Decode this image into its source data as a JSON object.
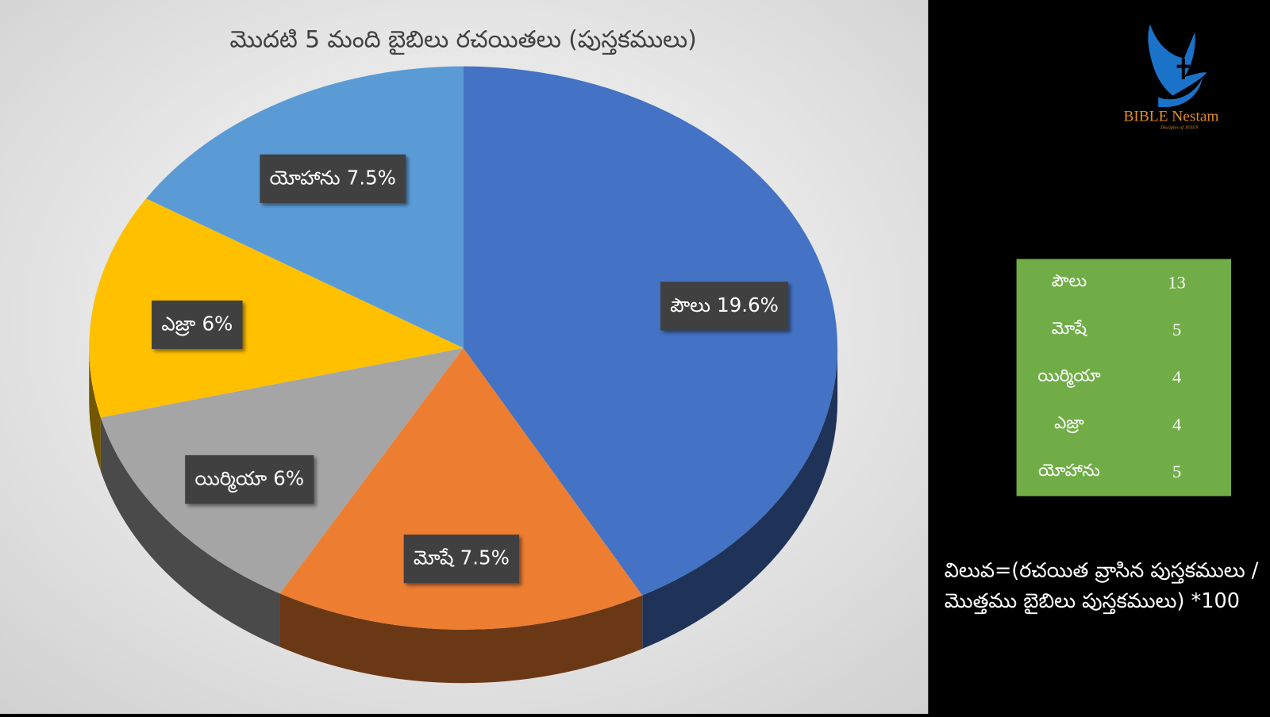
{
  "chart_data": {
    "type": "pie",
    "title": "మొదటి 5 మంది బైబిలు రచయితలు (పుస్తకములు)",
    "categories": [
      "పౌలు",
      "మోషే",
      "యిర్మియా",
      "ఎజ్రా",
      "యోహాను"
    ],
    "values": [
      19.6,
      7.5,
      6,
      6,
      7.5
    ],
    "value_labels": [
      "19.6%",
      "7.5%",
      "6%",
      "6%",
      "7.5%"
    ],
    "colors": [
      "#4472c4",
      "#ed7d31",
      "#a5a5a5",
      "#ffc000",
      "#5b9bd5"
    ]
  },
  "table": {
    "rows": [
      [
        "పౌలు",
        "13"
      ],
      [
        "మోషే",
        "5"
      ],
      [
        "యిర్మియా",
        "4"
      ],
      [
        "ఎజ్రా",
        "4"
      ],
      [
        "యోహాను",
        "5"
      ]
    ]
  },
  "formula": [
    "విలువ=(రచయిత వ్రాసిన పుస్తకములు /",
    "మొత్తము బైబిలు పుస్తకములు) *100"
  ],
  "logo": {
    "name": "BIBLE Nestam",
    "tagline": "Disciples of JESUS"
  }
}
